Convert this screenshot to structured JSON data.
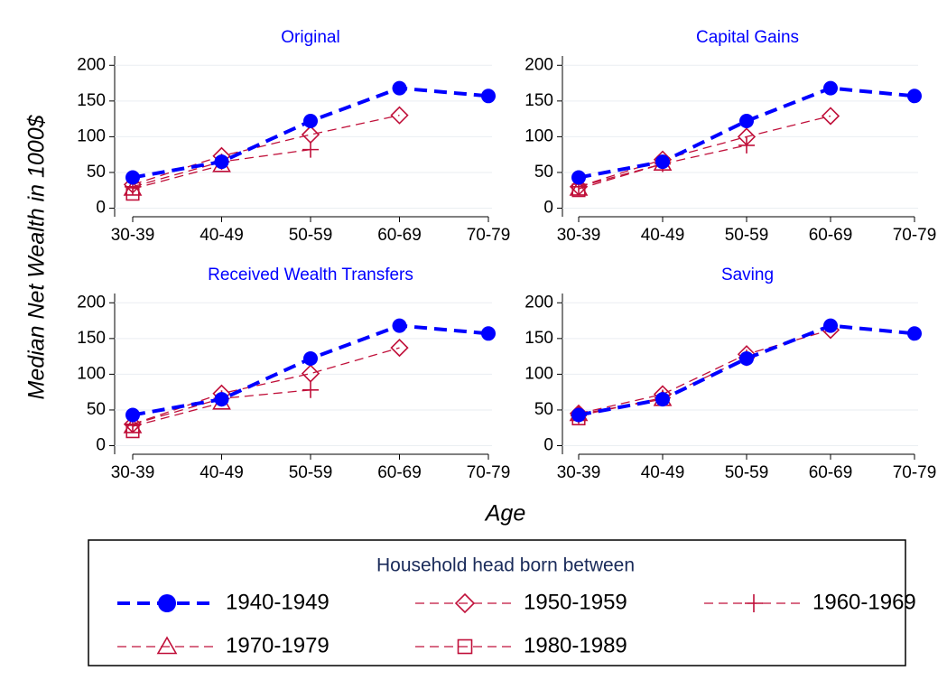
{
  "figure": {
    "y_axis_title": "Median Net Wealth in 1000$",
    "x_axis_title": "Age",
    "legend_title": "Household head born between"
  },
  "chart_data": [
    {
      "type": "line",
      "title": "Original",
      "categories": [
        "30-39",
        "40-49",
        "50-59",
        "60-69",
        "70-79"
      ],
      "ylim": [
        -12,
        213
      ],
      "yticks": [
        0,
        50,
        100,
        150,
        200
      ],
      "grid": true,
      "series": [
        {
          "name": "1940-1949",
          "color": "#0000ff",
          "marker": "circle",
          "values": [
            43,
            65,
            122,
            168,
            157
          ]
        },
        {
          "name": "1950-1959",
          "color": "#c0103a",
          "marker": "diamond",
          "values": [
            33,
            73,
            103,
            130,
            null
          ]
        },
        {
          "name": "1960-1969",
          "color": "#c0103a",
          "marker": "plus",
          "values": [
            30,
            65,
            82,
            null,
            null
          ]
        },
        {
          "name": "1970-1979",
          "color": "#c0103a",
          "marker": "triangle",
          "values": [
            27,
            60,
            null,
            null,
            null
          ]
        },
        {
          "name": "1980-1989",
          "color": "#c0103a",
          "marker": "square",
          "values": [
            20,
            null,
            null,
            null,
            null
          ]
        }
      ]
    },
    {
      "type": "line",
      "title": "Capital Gains",
      "categories": [
        "30-39",
        "40-49",
        "50-59",
        "60-69",
        "70-79"
      ],
      "ylim": [
        -12,
        213
      ],
      "yticks": [
        0,
        50,
        100,
        150,
        200
      ],
      "grid": true,
      "series": [
        {
          "name": "1940-1949",
          "color": "#0000ff",
          "marker": "circle",
          "values": [
            43,
            65,
            122,
            168,
            157
          ]
        },
        {
          "name": "1950-1959",
          "color": "#c0103a",
          "marker": "diamond",
          "values": [
            30,
            68,
            100,
            129,
            null
          ]
        },
        {
          "name": "1960-1969",
          "color": "#c0103a",
          "marker": "plus",
          "values": [
            30,
            62,
            88,
            null,
            null
          ]
        },
        {
          "name": "1970-1979",
          "color": "#c0103a",
          "marker": "triangle",
          "values": [
            27,
            62,
            null,
            null,
            null
          ]
        },
        {
          "name": "1980-1989",
          "color": "#c0103a",
          "marker": "square",
          "values": [
            25,
            null,
            null,
            null,
            null
          ]
        }
      ]
    },
    {
      "type": "line",
      "title": "Received Wealth Transfers",
      "categories": [
        "30-39",
        "40-49",
        "50-59",
        "60-69",
        "70-79"
      ],
      "ylim": [
        -12,
        213
      ],
      "yticks": [
        0,
        50,
        100,
        150,
        200
      ],
      "grid": true,
      "series": [
        {
          "name": "1940-1949",
          "color": "#0000ff",
          "marker": "circle",
          "values": [
            43,
            65,
            122,
            168,
            157
          ]
        },
        {
          "name": "1950-1959",
          "color": "#c0103a",
          "marker": "diamond",
          "values": [
            30,
            73,
            101,
            137,
            null
          ]
        },
        {
          "name": "1960-1969",
          "color": "#c0103a",
          "marker": "plus",
          "values": [
            30,
            66,
            78,
            null,
            null
          ]
        },
        {
          "name": "1970-1979",
          "color": "#c0103a",
          "marker": "triangle",
          "values": [
            27,
            60,
            null,
            null,
            null
          ]
        },
        {
          "name": "1980-1989",
          "color": "#c0103a",
          "marker": "square",
          "values": [
            20,
            null,
            null,
            null,
            null
          ]
        }
      ]
    },
    {
      "type": "line",
      "title": "Saving",
      "categories": [
        "30-39",
        "40-49",
        "50-59",
        "60-69",
        "70-79"
      ],
      "ylim": [
        -12,
        213
      ],
      "yticks": [
        0,
        50,
        100,
        150,
        200
      ],
      "grid": true,
      "series": [
        {
          "name": "1940-1949",
          "color": "#0000ff",
          "marker": "circle",
          "values": [
            43,
            65,
            122,
            168,
            157
          ]
        },
        {
          "name": "1950-1959",
          "color": "#c0103a",
          "marker": "diamond",
          "values": [
            45,
            72,
            128,
            162,
            null
          ]
        },
        {
          "name": "1960-1969",
          "color": "#c0103a",
          "marker": "plus",
          "values": [
            42,
            67,
            123,
            null,
            null
          ]
        },
        {
          "name": "1970-1979",
          "color": "#c0103a",
          "marker": "triangle",
          "values": [
            44,
            65,
            null,
            null,
            null
          ]
        },
        {
          "name": "1980-1989",
          "color": "#c0103a",
          "marker": "square",
          "values": [
            38,
            null,
            null,
            null,
            null
          ]
        }
      ]
    }
  ]
}
